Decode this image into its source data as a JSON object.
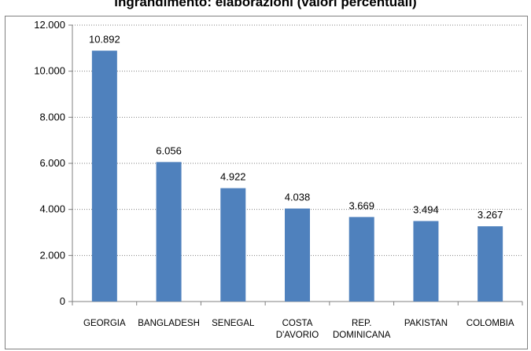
{
  "chart_data": {
    "type": "bar",
    "title": "ingrandimento: elaborazioni (valori percentuali)",
    "categories": [
      "GEORGIA",
      "BANGLADESH",
      "SENEGAL",
      "COSTA\nD'AVORIO",
      "REP.\nDOMINICANA",
      "PAKISTAN",
      "COLOMBIA"
    ],
    "values": [
      10892,
      6056,
      4922,
      4038,
      3669,
      3494,
      3267
    ],
    "value_labels": [
      "10.892",
      "6.056",
      "4.922",
      "4.038",
      "3.669",
      "3.494",
      "3.267"
    ],
    "yticks": [
      0,
      2000,
      4000,
      6000,
      8000,
      10000,
      12000
    ],
    "ytick_labels": [
      "0",
      "2.000",
      "4.000",
      "6.000",
      "8.000",
      "10.000",
      "12.000"
    ],
    "ylim": [
      0,
      12000
    ],
    "grid": true,
    "legend": "none",
    "bar_color": "#4F81BD",
    "grid_color": "#808080",
    "xlabel": "",
    "ylabel": ""
  }
}
